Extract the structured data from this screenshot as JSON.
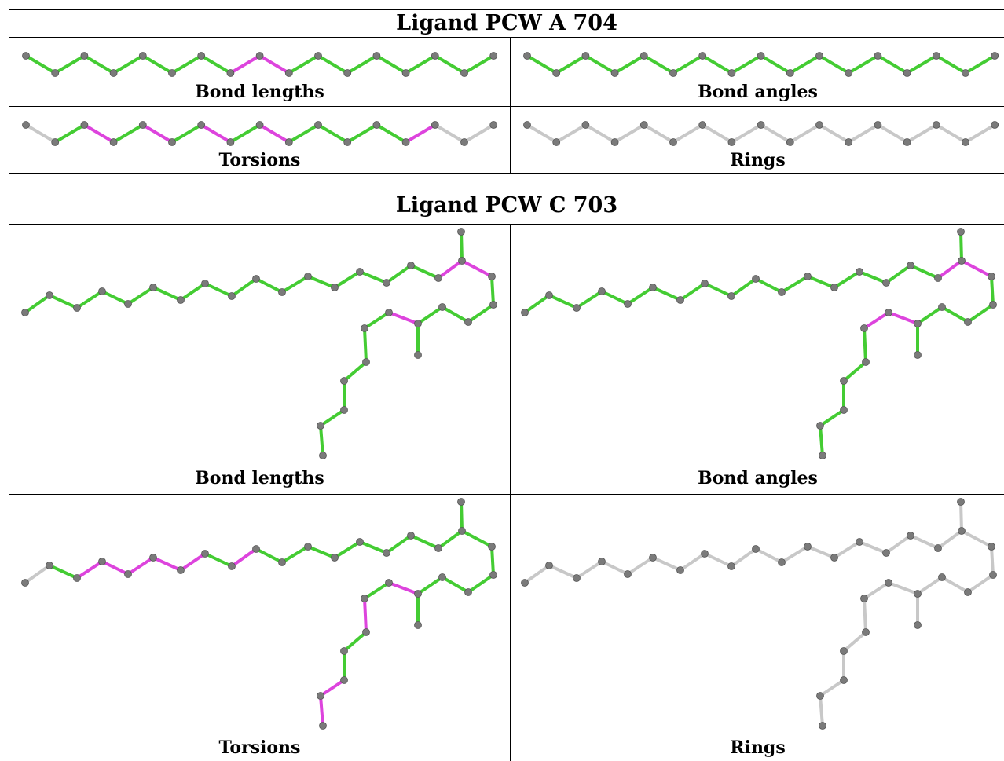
{
  "colors": {
    "ok": "#44cc33",
    "outlier": "#dd44dd",
    "none": "#c8c8c8",
    "atom": "#7a7a7a"
  },
  "tables": [
    {
      "title": "Ligand PCW A 704",
      "panels": [
        {
          "label": "Bond lengths",
          "coloring": "bonds",
          "bonds": [
            "g",
            "g",
            "g",
            "g",
            "g",
            "g",
            "g",
            "m",
            "m",
            "g",
            "g",
            "g",
            "g",
            "g",
            "g",
            "g"
          ]
        },
        {
          "label": "Bond angles",
          "coloring": "bonds",
          "bonds": [
            "g",
            "g",
            "g",
            "g",
            "g",
            "g",
            "g",
            "g",
            "g",
            "g",
            "g",
            "g",
            "g",
            "g",
            "g",
            "g"
          ]
        },
        {
          "label": "Torsions",
          "coloring": "bonds",
          "bonds": [
            "n",
            "g",
            "m",
            "g",
            "m",
            "g",
            "m",
            "g",
            "m",
            "g",
            "g",
            "g",
            "g",
            "m",
            "n",
            "n"
          ]
        },
        {
          "label": "Rings",
          "coloring": "bonds",
          "bonds": [
            "n",
            "n",
            "n",
            "n",
            "n",
            "n",
            "n",
            "n",
            "n",
            "n",
            "n",
            "n",
            "n",
            "n",
            "n",
            "n"
          ]
        }
      ]
    },
    {
      "title": "Ligand PCW C 703",
      "panels": [
        {
          "label": "Bond lengths",
          "bonds": [
            "g",
            "g",
            "g",
            "g",
            "g",
            "g",
            "g",
            "g",
            "g",
            "g",
            "g",
            "g",
            "g",
            "g",
            "g",
            "g",
            "m",
            "g",
            "m",
            "g",
            "g",
            "g",
            "g",
            "g",
            "m",
            "g",
            "g",
            "g",
            "g",
            "g",
            "g",
            "g",
            "g",
            "g",
            "g"
          ]
        },
        {
          "label": "Bond angles",
          "bonds": [
            "g",
            "g",
            "g",
            "g",
            "g",
            "g",
            "g",
            "g",
            "g",
            "g",
            "g",
            "g",
            "g",
            "g",
            "g",
            "g",
            "m",
            "g",
            "m",
            "g",
            "g",
            "g",
            "g",
            "g",
            "m",
            "m",
            "g",
            "g",
            "g",
            "g",
            "g",
            "g",
            "g",
            "g",
            "g"
          ]
        },
        {
          "label": "Torsions",
          "bonds": [
            "n",
            "g",
            "m",
            "m",
            "m",
            "m",
            "m",
            "g",
            "m",
            "g",
            "g",
            "g",
            "g",
            "g",
            "g",
            "g",
            "g",
            "g",
            "g",
            "g",
            "g",
            "g",
            "g",
            "g",
            "m",
            "g",
            "m",
            "g",
            "g",
            "m",
            "m",
            "g",
            "g",
            "n",
            "n"
          ]
        },
        {
          "label": "Rings",
          "bonds": [
            "n",
            "n",
            "n",
            "n",
            "n",
            "n",
            "n",
            "n",
            "n",
            "n",
            "n",
            "n",
            "n",
            "n",
            "n",
            "n",
            "n",
            "n",
            "n",
            "n",
            "n",
            "n",
            "n",
            "n",
            "n",
            "n",
            "n",
            "n",
            "n",
            "n",
            "n",
            "n",
            "n",
            "n",
            "n"
          ]
        }
      ]
    }
  ]
}
